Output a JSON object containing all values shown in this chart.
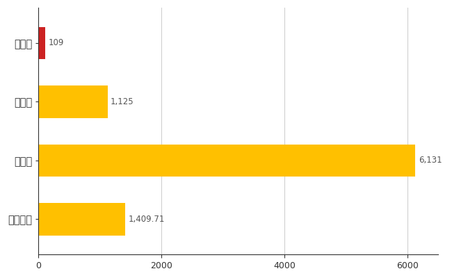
{
  "categories": [
    "川本町",
    "県平均",
    "県最大",
    "全国平均"
  ],
  "values": [
    109,
    1125,
    6131,
    1409.71
  ],
  "bar_colors": [
    "#cc2222",
    "#ffc000",
    "#ffc000",
    "#ffc000"
  ],
  "value_labels": [
    "109",
    "1,125",
    "6,131",
    "1,409.71"
  ],
  "xlim": [
    0,
    6500
  ],
  "xticks": [
    0,
    2000,
    4000,
    6000
  ],
  "background_color": "#ffffff",
  "grid_color": "#aaaaaa",
  "value_color": "#555555",
  "bar_height": 0.55,
  "figsize": [
    6.5,
    4.0
  ],
  "dpi": 100
}
